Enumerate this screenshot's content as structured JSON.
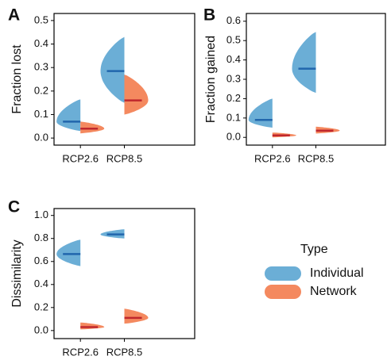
{
  "chart_data": [
    {
      "type": "violin",
      "label": "A",
      "ylabel": "Fraction lost",
      "categories": [
        "RCP2.6",
        "RCP8.5"
      ],
      "ylim": [
        -0.03,
        0.53
      ],
      "yticks": [
        {
          "value": 0,
          "label": "0.0"
        },
        0.1,
        0.2,
        0.3,
        0.4,
        0.5
      ],
      "series": [
        {
          "name": "Individual",
          "color": "#6baed6",
          "median_color": "#2166ac",
          "values": [
            0.07,
            0.285
          ],
          "min": [
            0.03,
            0.15
          ],
          "max": [
            0.165,
            0.43
          ]
        },
        {
          "name": "Network",
          "color": "#f4895f",
          "median_color": "#c0272d",
          "values": [
            0.04,
            0.16
          ],
          "min": [
            0.02,
            0.1
          ],
          "max": [
            0.07,
            0.27
          ]
        }
      ]
    },
    {
      "type": "violin",
      "label": "B",
      "ylabel": "Fraction gained",
      "categories": [
        "RCP2.6",
        "RCP8.5"
      ],
      "ylim": [
        -0.04,
        0.64
      ],
      "yticks": [
        {
          "value": 0,
          "label": "0.0"
        },
        0.1,
        0.2,
        0.3,
        0.4,
        0.5,
        0.6
      ],
      "series": [
        {
          "name": "Individual",
          "color": "#6baed6",
          "median_color": "#2166ac",
          "values": [
            0.09,
            0.355
          ],
          "min": [
            0.05,
            0.23
          ],
          "max": [
            0.2,
            0.545
          ]
        },
        {
          "name": "Network",
          "color": "#f4895f",
          "median_color": "#c0272d",
          "values": [
            0.01,
            0.035
          ],
          "min": [
            0.0,
            0.02
          ],
          "max": [
            0.025,
            0.055
          ]
        }
      ]
    },
    {
      "type": "violin",
      "label": "C",
      "ylabel": "Dissimilarity",
      "categories": [
        "RCP2.6",
        "RCP8.5"
      ],
      "ylim": [
        -0.07,
        1.06
      ],
      "yticks": [
        {
          "value": 0,
          "label": "0.0"
        },
        0.2,
        0.4,
        0.6,
        0.8,
        {
          "value": 1,
          "label": "1.0"
        }
      ],
      "legend_title": "Type",
      "legend": "right",
      "series": [
        {
          "name": "Individual",
          "color": "#6baed6",
          "median_color": "#2166ac",
          "values": [
            0.665,
            0.835
          ],
          "min": [
            0.56,
            0.8
          ],
          "max": [
            0.79,
            0.88
          ]
        },
        {
          "name": "Network",
          "color": "#f4895f",
          "median_color": "#c0272d",
          "values": [
            0.03,
            0.11
          ],
          "min": [
            0.01,
            0.06
          ],
          "max": [
            0.07,
            0.19
          ]
        }
      ]
    }
  ]
}
